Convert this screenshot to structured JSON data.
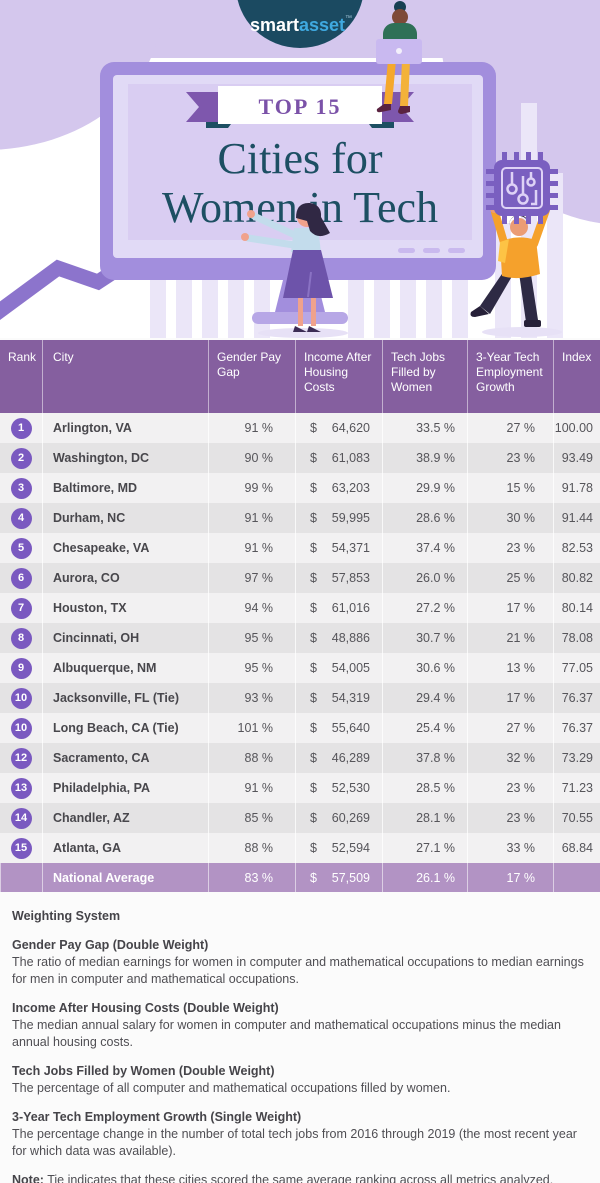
{
  "header": {
    "logo_smart": "smart",
    "logo_asset": "asset",
    "logo_tm": "™",
    "ribbon": "TOP 15",
    "title_line1": "Cities for",
    "title_line2": "Women in Tech"
  },
  "chart_data": {
    "type": "table",
    "title": "Top 15 Cities for Women in Tech",
    "columns": [
      "Rank",
      "City",
      "Gender Pay Gap",
      "Income After Housing Costs",
      "Tech Jobs Filled by Women",
      "3-Year Tech Employment Growth",
      "Index"
    ],
    "currency": "$",
    "rows": [
      [
        "1",
        "Arlington, VA",
        "91 %",
        "64,620",
        "33.5 %",
        "27 %",
        "100.00"
      ],
      [
        "2",
        "Washington, DC",
        "90 %",
        "61,083",
        "38.9 %",
        "23 %",
        "93.49"
      ],
      [
        "3",
        "Baltimore, MD",
        "99 %",
        "63,203",
        "29.9 %",
        "15 %",
        "91.78"
      ],
      [
        "4",
        "Durham, NC",
        "91 %",
        "59,995",
        "28.6 %",
        "30 %",
        "91.44"
      ],
      [
        "5",
        "Chesapeake, VA",
        "91 %",
        "54,371",
        "37.4 %",
        "23 %",
        "82.53"
      ],
      [
        "6",
        "Aurora, CO",
        "97 %",
        "57,853",
        "26.0 %",
        "25 %",
        "80.82"
      ],
      [
        "7",
        "Houston, TX",
        "94 %",
        "61,016",
        "27.2 %",
        "17 %",
        "80.14"
      ],
      [
        "8",
        "Cincinnati, OH",
        "95 %",
        "48,886",
        "30.7 %",
        "21 %",
        "78.08"
      ],
      [
        "9",
        "Albuquerque, NM",
        "95 %",
        "54,005",
        "30.6 %",
        "13 %",
        "77.05"
      ],
      [
        "10",
        "Jacksonville, FL (Tie)",
        "93 %",
        "54,319",
        "29.4 %",
        "17 %",
        "76.37"
      ],
      [
        "10",
        "Long Beach, CA (Tie)",
        "101 %",
        "55,640",
        "25.4 %",
        "27 %",
        "76.37"
      ],
      [
        "12",
        "Sacramento, CA",
        "88 %",
        "46,289",
        "37.8 %",
        "32 %",
        "73.29"
      ],
      [
        "13",
        "Philadelphia, PA",
        "91 %",
        "52,530",
        "28.5 %",
        "23 %",
        "71.23"
      ],
      [
        "14",
        "Chandler, AZ",
        "85 %",
        "60,269",
        "28.1 %",
        "23 %",
        "70.55"
      ],
      [
        "15",
        "Atlanta, GA",
        "88 %",
        "52,594",
        "27.1 %",
        "33 %",
        "68.84"
      ]
    ],
    "national_average": [
      "National Average",
      "83 %",
      "57,509",
      "26.1 %",
      "17 %",
      ""
    ]
  },
  "footnotes": {
    "title": "Weighting System",
    "sections": [
      {
        "heading": "Gender Pay Gap (Double Weight)",
        "body": "The ratio of median earnings for women in computer and mathematical occupations to median earnings for men in computer and mathematical occupations."
      },
      {
        "heading": "Income After Housing Costs (Double Weight)",
        "body": "The median annual salary for women in computer and mathematical occupations minus the median annual housing costs."
      },
      {
        "heading": "Tech Jobs Filled by Women (Double Weight)",
        "body": "The percentage of all computer and mathematical occupations filled by women."
      },
      {
        "heading": "3-Year Tech Employment Growth (Single Weight)",
        "body": "The percentage change in the number of total tech jobs from 2016 through 2019 (the most recent year for which data was available)."
      }
    ],
    "note_label": "Note:",
    "note_text": " Tie indicates that these cities scored the same average ranking across all metrics analyzed."
  },
  "colors": {
    "lavender": "#d4c7ed",
    "bars": "#ebe6f8",
    "monitor_frame": "#a28edd",
    "screen": "#e1daf6",
    "ribbon_purple": "#7e57ad",
    "title_teal": "#1d4f63",
    "logo_bg": "#1b4a61",
    "logo_accent": "#3fa9e0",
    "table_header": "#855f9f",
    "rank_badge": "#7a59c0",
    "row_light": "#f2f1f2",
    "row_dark": "#e4e3e4",
    "national_avg_row": "#b293c4"
  }
}
